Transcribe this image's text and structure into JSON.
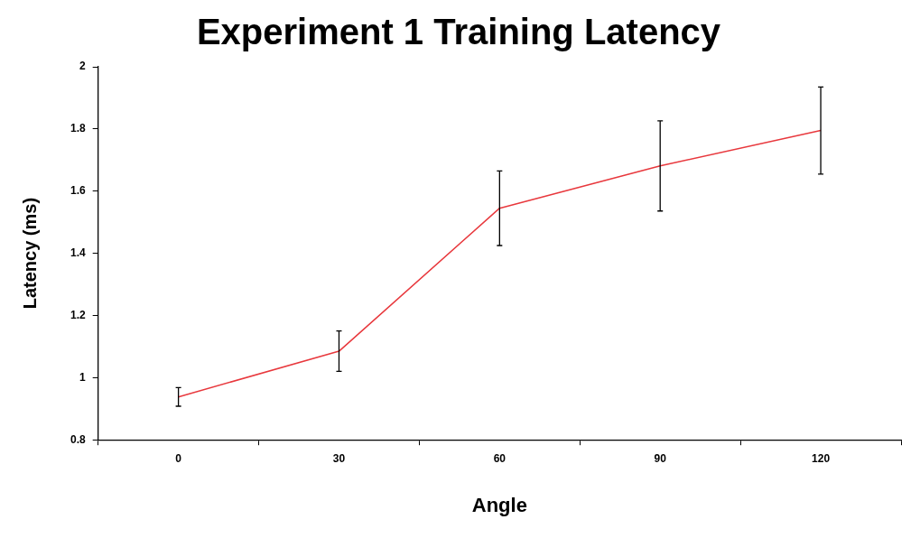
{
  "chart_data": {
    "type": "line",
    "title": "Experiment 1 Training Latency",
    "xlabel": "Angle",
    "ylabel": "Latency (ms)",
    "categories": [
      "0",
      "30",
      "60",
      "90",
      "120"
    ],
    "series": [
      {
        "color": "#e8383d",
        "values": [
          0.938,
          1.085,
          1.545,
          1.681,
          1.795
        ],
        "errors": [
          0.03,
          0.065,
          0.12,
          0.145,
          0.14
        ]
      }
    ],
    "ylim": [
      0.8,
      2
    ],
    "yticks": [
      0.8,
      1,
      1.2,
      1.4,
      1.6,
      1.8,
      2
    ],
    "grid": false,
    "legend": false,
    "marker": "none",
    "line_style": "solid"
  }
}
